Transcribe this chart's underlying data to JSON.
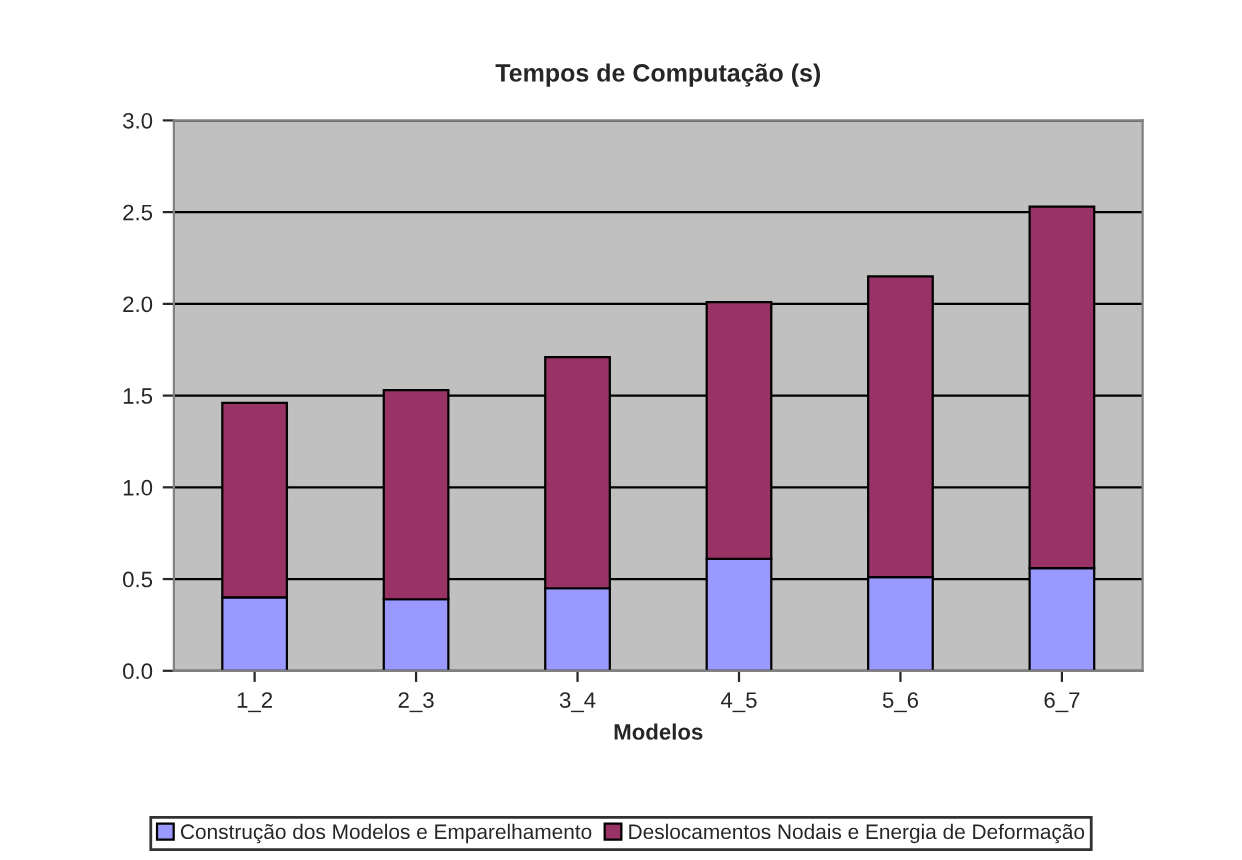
{
  "chart_data": {
    "type": "bar",
    "title": "Tempos de Computação (s)",
    "xlabel": "Modelos",
    "categories": [
      "1_2",
      "2_3",
      "3_4",
      "4_5",
      "5_6",
      "6_7"
    ],
    "stacked": true,
    "series": [
      {
        "name": "Construção dos Modelos e Emparelhamento",
        "color": "#9999ff",
        "values": [
          0.4,
          0.39,
          0.45,
          0.61,
          0.51,
          0.56
        ]
      },
      {
        "name": "Deslocamentos Nodais e Energia de Deformação",
        "color": "#993366",
        "values": [
          1.06,
          1.14,
          1.26,
          1.4,
          1.64,
          1.97
        ]
      }
    ],
    "ylim": [
      0,
      3.0
    ],
    "yticks": [
      {
        "value": 0,
        "label": "0.0"
      },
      {
        "value": 0.5,
        "label": "0.5"
      },
      {
        "value": 1.0,
        "label": "1.0"
      },
      {
        "value": 1.5,
        "label": "1.5"
      },
      {
        "value": 2.0,
        "label": "2.0"
      },
      {
        "value": 2.5,
        "label": "2.5"
      },
      {
        "value": 3.0,
        "label": "3.0"
      }
    ],
    "grid": "y",
    "legend": "bottom"
  }
}
